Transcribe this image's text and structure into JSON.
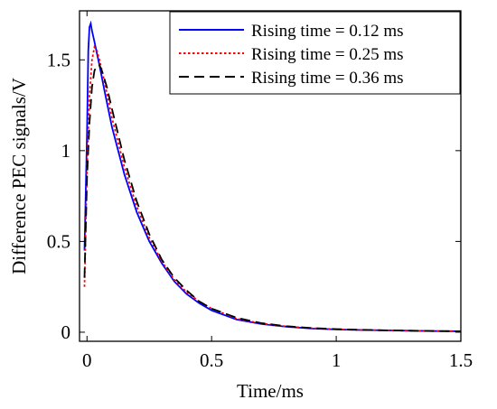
{
  "chart_data": {
    "type": "line",
    "xlabel": "Time/ms",
    "ylabel": "Difference PEC signals/V",
    "xlim": [
      -0.03,
      1.5
    ],
    "ylim": [
      -0.05,
      1.77
    ],
    "xticks": [
      0,
      0.5,
      1,
      1.5
    ],
    "xtick_labels": [
      "0",
      "0.5",
      "1",
      "1.5"
    ],
    "yticks": [
      0,
      0.5,
      1,
      1.5
    ],
    "ytick_labels": [
      "0",
      "0.5",
      "1",
      "1.5"
    ],
    "grid": false,
    "legend_position": "top-right",
    "series": [
      {
        "name": "Rising time = 0.12 ms",
        "color": "#0000ff",
        "dash": "solid",
        "x": [
          -0.01,
          0.0,
          0.005,
          0.01,
          0.015,
          0.02,
          0.03,
          0.05,
          0.07,
          0.1,
          0.15,
          0.2,
          0.25,
          0.3,
          0.35,
          0.4,
          0.45,
          0.5,
          0.6,
          0.7,
          0.8,
          0.9,
          1.0,
          1.1,
          1.2,
          1.3,
          1.4,
          1.5
        ],
        "y": [
          0.45,
          1.1,
          1.55,
          1.68,
          1.7,
          1.66,
          1.6,
          1.47,
          1.33,
          1.13,
          0.87,
          0.66,
          0.5,
          0.38,
          0.28,
          0.21,
          0.16,
          0.12,
          0.07,
          0.045,
          0.03,
          0.02,
          0.015,
          0.012,
          0.01,
          0.008,
          0.006,
          0.005
        ]
      },
      {
        "name": "Rising time = 0.25 ms",
        "color": "#ff0000",
        "dash": "dotted",
        "x": [
          -0.01,
          0.0,
          0.01,
          0.02,
          0.03,
          0.04,
          0.05,
          0.07,
          0.1,
          0.15,
          0.2,
          0.25,
          0.3,
          0.35,
          0.4,
          0.45,
          0.5,
          0.6,
          0.7,
          0.8,
          0.9,
          1.0,
          1.1,
          1.2,
          1.3,
          1.4,
          1.5
        ],
        "y": [
          0.25,
          0.9,
          1.3,
          1.5,
          1.57,
          1.55,
          1.5,
          1.38,
          1.18,
          0.91,
          0.69,
          0.52,
          0.39,
          0.29,
          0.22,
          0.17,
          0.13,
          0.075,
          0.048,
          0.032,
          0.022,
          0.016,
          0.012,
          0.01,
          0.008,
          0.006,
          0.005
        ]
      },
      {
        "name": "Rising time = 0.36 ms",
        "color": "#000000",
        "dash": "dashed",
        "x": [
          -0.01,
          0.0,
          0.01,
          0.02,
          0.03,
          0.04,
          0.05,
          0.06,
          0.08,
          0.1,
          0.15,
          0.2,
          0.25,
          0.3,
          0.35,
          0.4,
          0.45,
          0.5,
          0.6,
          0.7,
          0.8,
          0.9,
          1.0,
          1.1,
          1.2,
          1.3,
          1.4,
          1.5
        ],
        "y": [
          0.3,
          0.85,
          1.15,
          1.35,
          1.44,
          1.47,
          1.47,
          1.44,
          1.35,
          1.23,
          0.95,
          0.72,
          0.54,
          0.4,
          0.3,
          0.23,
          0.17,
          0.13,
          0.08,
          0.05,
          0.033,
          0.023,
          0.017,
          0.013,
          0.01,
          0.008,
          0.006,
          0.005
        ]
      }
    ]
  }
}
